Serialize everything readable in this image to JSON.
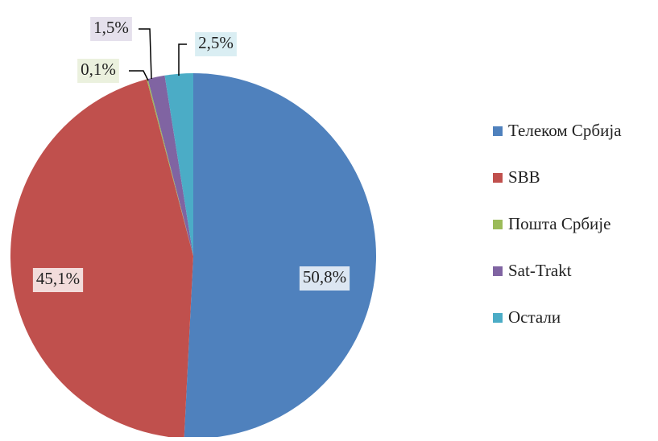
{
  "chart_data": {
    "type": "pie",
    "categories": [
      "Телеком Србија",
      "SBB",
      "Пошта Србије",
      "Sat-Trakt",
      "Остали"
    ],
    "values": [
      50.8,
      45.1,
      0.1,
      1.5,
      2.5
    ],
    "value_labels": [
      "50,8%",
      "45,1%",
      "0,1%",
      "1,5%",
      "2,5%"
    ],
    "colors": [
      "#4f81bd",
      "#c0504d",
      "#9bbb59",
      "#8064a2",
      "#4bacc6"
    ],
    "legend": "right"
  }
}
